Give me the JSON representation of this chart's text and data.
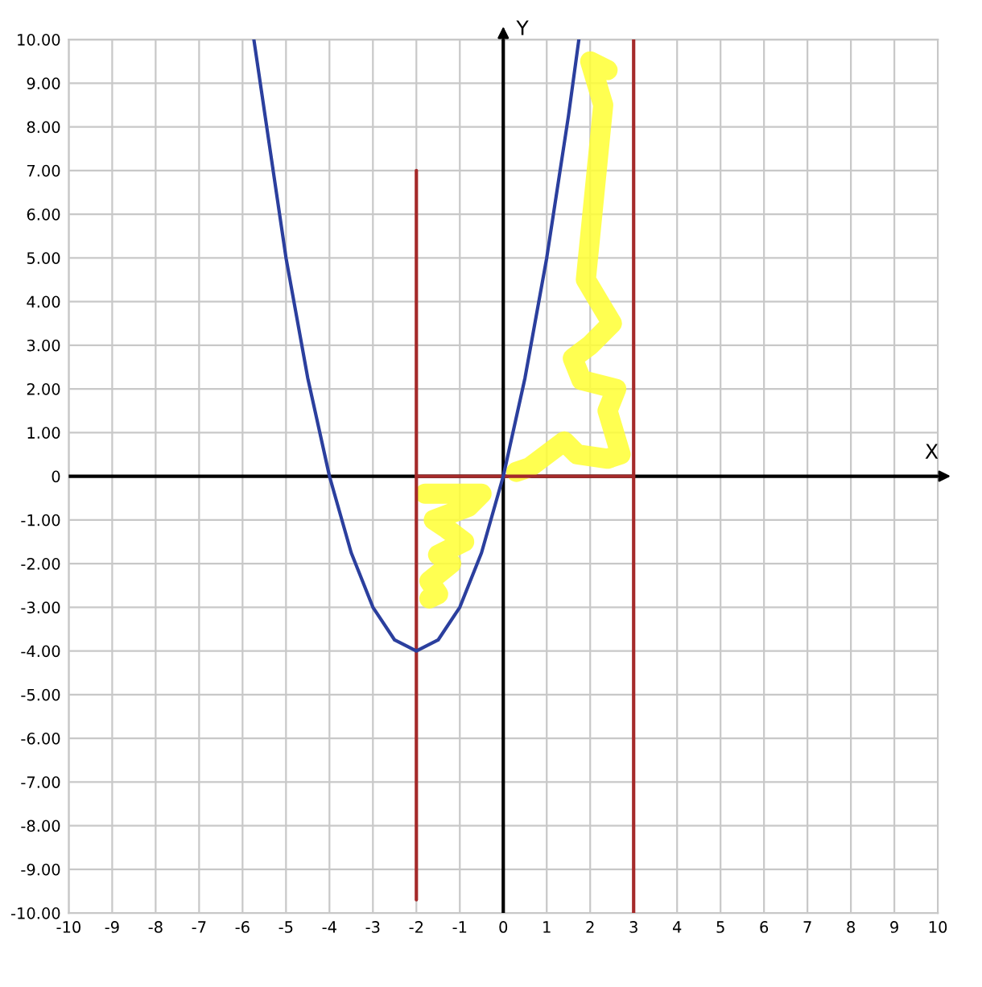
{
  "chart_data": {
    "type": "line",
    "xlabel": "X",
    "ylabel": "Y",
    "xlim": [
      -10,
      10
    ],
    "ylim": [
      -10,
      10
    ],
    "xticks": [
      -10,
      -9,
      -8,
      -7,
      -6,
      -5,
      -4,
      -3,
      -2,
      -1,
      0,
      1,
      2,
      3,
      4,
      5,
      6,
      7,
      8,
      9,
      10
    ],
    "yticks": [
      {
        "value": -10,
        "label": "-10.00"
      },
      {
        "value": -9,
        "label": "-9.00"
      },
      {
        "value": -8,
        "label": "-8.00"
      },
      {
        "value": -7,
        "label": "-7.00"
      },
      {
        "value": -6,
        "label": "-6.00"
      },
      {
        "value": -5,
        "label": "-5.00"
      },
      {
        "value": -4,
        "label": "-4.00"
      },
      {
        "value": -3,
        "label": "-3.00"
      },
      {
        "value": -2,
        "label": "-2.00"
      },
      {
        "value": -1,
        "label": "-1.00"
      },
      0,
      {
        "value": 1,
        "label": "1.00"
      },
      {
        "value": 2,
        "label": "2.00"
      },
      {
        "value": 3,
        "label": "3.00"
      },
      {
        "value": 4,
        "label": "4.00"
      },
      {
        "value": 5,
        "label": "5.00"
      },
      {
        "value": 6,
        "label": "6.00"
      },
      {
        "value": 7,
        "label": "7.00"
      },
      {
        "value": 8,
        "label": "8.00"
      },
      {
        "value": 9,
        "label": "9.00"
      },
      {
        "value": 10,
        "label": "10.00"
      }
    ],
    "grid": true,
    "series": [
      {
        "color": "#000000",
        "x": [
          -10,
          10
        ],
        "values": [
          0,
          0
        ]
      },
      {
        "color": "#000000",
        "x": [
          0,
          0
        ],
        "values": [
          -10,
          10
        ]
      },
      {
        "color": "#a52a2a",
        "x": [
          3,
          3
        ],
        "values": [
          -10,
          10
        ]
      },
      {
        "color": "#ffff33",
        "x": [
          -1.8,
          -1.0,
          -0.5,
          -0.8,
          -1.6,
          -1.3,
          -0.9,
          -1.5,
          -1.2,
          -1.7,
          -1.5,
          -1.7
        ],
        "values": [
          -0.4,
          -0.4,
          -0.4,
          -0.7,
          -1.0,
          -1.2,
          -1.5,
          -1.8,
          -2.0,
          -2.4,
          -2.7,
          -2.8
        ]
      },
      {
        "color": "#ffff33",
        "x": [
          0.3,
          0.6,
          1.0,
          1.4,
          1.7,
          2.4,
          2.7,
          2.4,
          2.6,
          1.8,
          1.6,
          2.0,
          2.5,
          2.2,
          1.9,
          2.0,
          2.1,
          2.2,
          2.3,
          2.0,
          2.4
        ],
        "values": [
          0.1,
          0.2,
          0.5,
          0.8,
          0.5,
          0.4,
          0.5,
          1.5,
          2.0,
          2.2,
          2.7,
          3.0,
          3.5,
          4.0,
          4.5,
          5.5,
          6.5,
          7.5,
          8.5,
          9.5,
          9.3
        ]
      },
      {
        "color": "#a52a2a",
        "x": [
          -2,
          -2
        ],
        "values": [
          -9.7,
          7
        ]
      },
      {
        "color": "#a52a2a",
        "x": [
          -2,
          3
        ],
        "values": [
          0,
          0
        ]
      },
      {
        "color": "#2b3f9e",
        "x": [
          -5.74,
          -5,
          -4.5,
          -4,
          -3.5,
          -3,
          -2.5,
          -2,
          -1.5,
          -1,
          -0.5,
          0,
          0.5,
          1,
          1.5,
          1.74
        ],
        "values": [
          10,
          5,
          2.25,
          0,
          -1.75,
          -3,
          -3.75,
          -4,
          -3.75,
          -3,
          -1.75,
          0,
          2.25,
          5,
          8.25,
          10
        ]
      }
    ]
  }
}
